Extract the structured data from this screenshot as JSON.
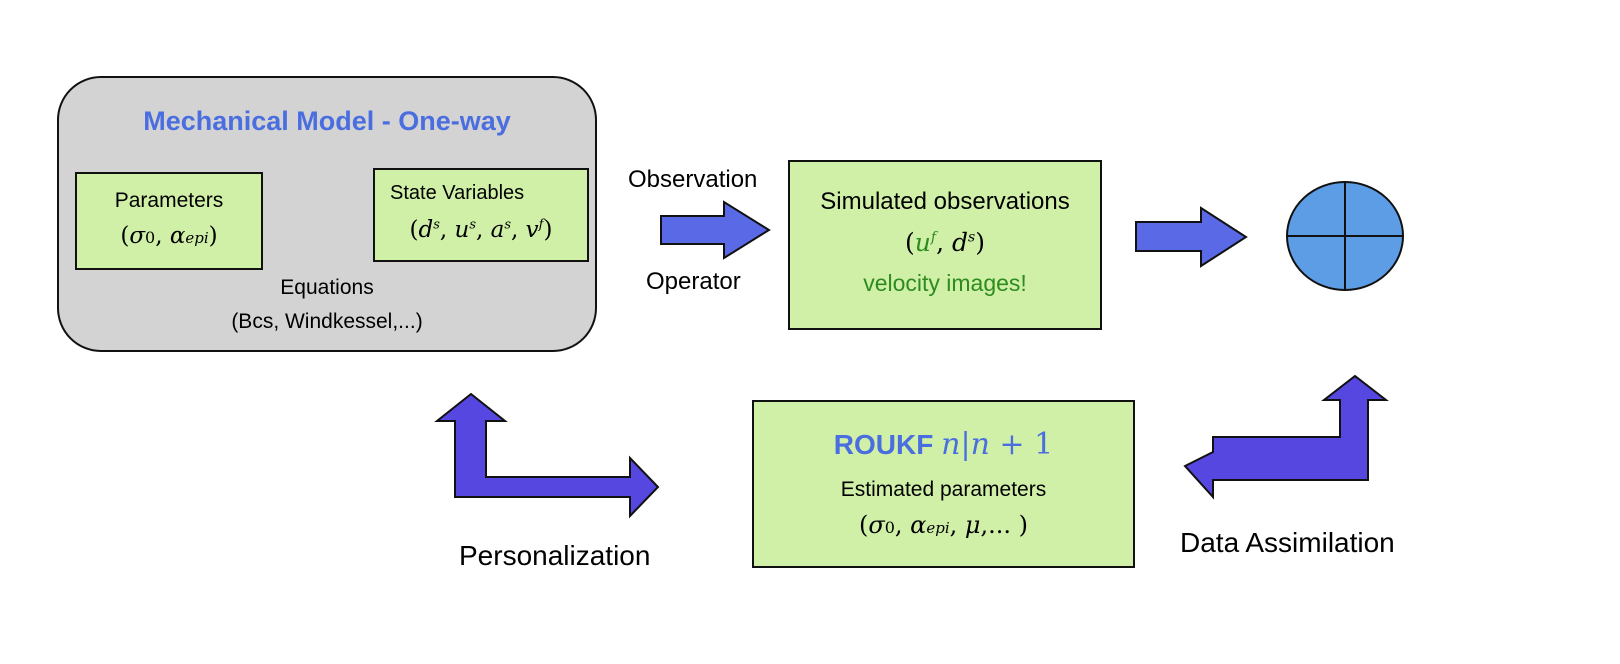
{
  "colors": {
    "arrow_fill": "#5547e0",
    "arrow_small_fill": "#5a6ae6",
    "box_green": "#d0f0a8",
    "model_gray": "#d3d3d3",
    "title_blue": "#4a6ee0",
    "green_text": "#2e8b1e",
    "circle_fill": "#5d9de6"
  },
  "model": {
    "title": "Mechanical Model - One-way",
    "parameters_label": "Parameters",
    "state_label": "State Variables",
    "equations_label": "Equations",
    "equations_detail": "(Bcs, Windkessel,...)"
  },
  "observation": {
    "top_label": "Observation",
    "bottom_label": "Operator"
  },
  "simulated": {
    "title": "Simulated observations",
    "note": "velocity images!"
  },
  "roukf": {
    "title": "ROUKF",
    "subtitle": "Estimated parameters"
  },
  "labels": {
    "personalization": "Personalization",
    "data_assimilation": "Data Assimilation"
  }
}
